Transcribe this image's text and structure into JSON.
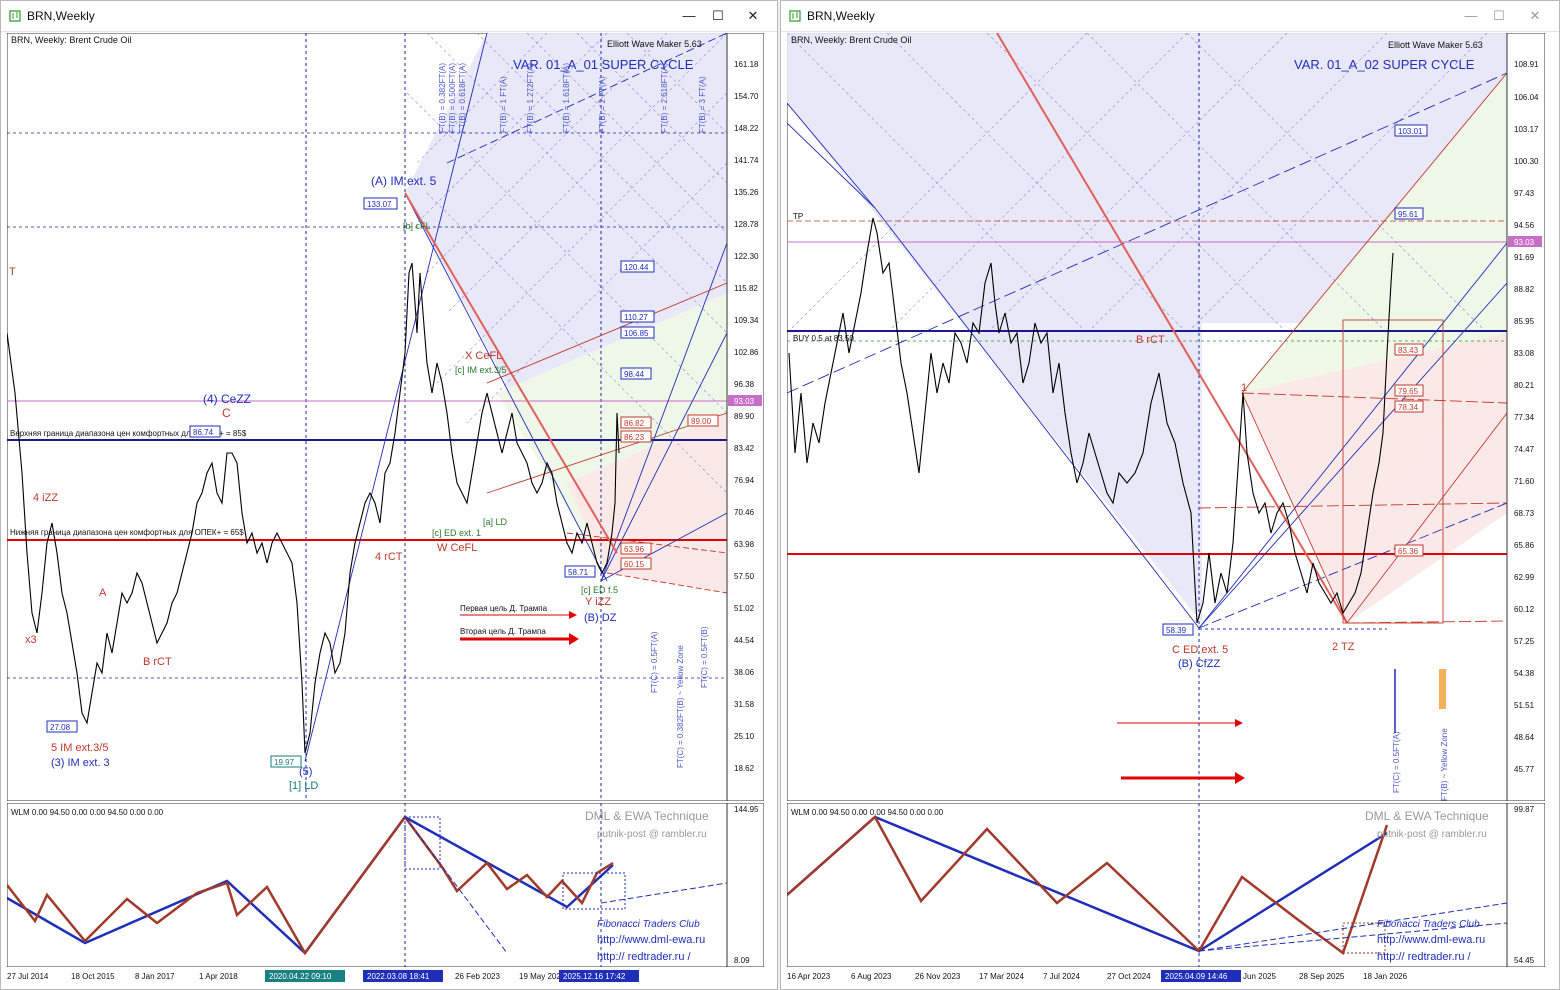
{
  "left_window": {
    "title": "BRN,Weekly",
    "chart_header": "BRN, Weekly:  Brent Crude Oil",
    "indicator_name": "Elliott Wave Maker 5.63",
    "scenario": "VAR. 01_A_01 SUPER CYCLE",
    "price_axis": [
      "161.18",
      "154.70",
      "148.22",
      "141.74",
      "135.26",
      "128.78",
      "122.30",
      "115.82",
      "109.34",
      "102.86",
      "96.38",
      "89.90",
      "83.42",
      "76.94",
      "70.46",
      "63.98",
      "57.50",
      "51.02",
      "44.54",
      "38.06",
      "31.58",
      "25.10",
      "18.62"
    ],
    "current_price": "93.03",
    "level_upper": "Верхняя граница диапазона цен комфортных для ОПЕК+ = 85$",
    "level_lower": "Нижняя граница диапазона цен комфортных для ОПЕК+ = 65$",
    "trump_target_1": "Первая цель Д. Трампа",
    "trump_target_2": "Вторая цель Д. Трампа",
    "price_boxes": [
      "133.07",
      "27.08",
      "19.97",
      "58.71",
      "120.44",
      "110.27",
      "106.85",
      "98.44",
      "86.82",
      "86.23",
      "89.00",
      "63.96",
      "60.15",
      "86.74"
    ],
    "wave_labels": {
      "a_im": "(A) IM ext. 5",
      "four_cezz": "(4) CeZZ",
      "c_red": "C",
      "x_cefl": "X CeFL",
      "c_im": "[c] IM ext.3/5",
      "b_cfl": "[b] cFL",
      "w_cefl": "W CeFL",
      "c_ed1": "[c] ED ext. 1",
      "a_ld": "[a] LD",
      "four_rct": "4 rCT",
      "four_izz": "4 iZZ",
      "x3": "x3",
      "five_im": "5 IM ext.3/5",
      "three_im": "(3) IM ext. 3",
      "b_rct": "B rCT",
      "a_red": "A",
      "five": "(5)",
      "one_ld": "[1] LD",
      "y_izz": "Y iZZ",
      "b_dz": "(B) DZ",
      "c_ed5": "[c] ED f.5",
      "t": "T"
    },
    "fib_vertical": [
      "FT(B) = 0.382FT(A)",
      "FT(B) = 0.500FT(A)",
      "FT(B) = 0.618FT(A)",
      "FT(B) = 1 FT(A)",
      "FT(B) = 1.272FT(A)",
      "FT(B) = 1.618FT(A)",
      "FT(B) = 2 FT(A)",
      "FT(B) = 2.618FT(A)",
      "FT(B) = 3 FT(A)"
    ],
    "fib_lower": [
      "FT(C) = 0.5FT(A)",
      "FT(C) = 0.382FT(B) ~ Yellow Zone",
      "FT(C) = 0.5FT(B)"
    ],
    "sub_header": "WLM 0.00 94.50 0.00 0.00 94.50 0.00 0.00",
    "sub_axis": [
      "144.95",
      "8.09"
    ],
    "watermark1": "DML & EWA Technique",
    "watermark2": "putnik-post @ rambler.ru",
    "watermark3": "Fibonacci      Traders      Club",
    "watermark4": "http://www.dml-ewa.ru",
    "watermark5": "http://  redtrader.ru  /",
    "x_axis": [
      "27 Jul 2014",
      "18 Oct 2015",
      "8 Jan 2017",
      "1 Apr 2018",
      "2020.04.22 09:10",
      "2022.03.08 18:41",
      "26 Feb 2023",
      "19 May 2024",
      "2025.12.16 17:42"
    ]
  },
  "right_window": {
    "title": "BRN,Weekly",
    "chart_header": "BRN, Weekly:  Brent Crude Oil",
    "indicator_name": "Elliott Wave Maker 5.63",
    "scenario": "VAR. 01_A_02 SUPER CYCLE",
    "price_axis": [
      "108.91",
      "106.04",
      "103.17",
      "100.30",
      "97.43",
      "94.56",
      "91.69",
      "88.82",
      "85.95",
      "83.08",
      "80.21",
      "77.34",
      "74.47",
      "71.60",
      "68.73",
      "65.86",
      "62.99",
      "60.12",
      "57.25",
      "54.38",
      "51.51",
      "48.64",
      "45.77"
    ],
    "current_price": "93.03",
    "tp_label": "TP",
    "buy_label": "BUY 0.5 at 83.50",
    "price_boxes": [
      "103.01",
      "95.61",
      "83.43",
      "79.65",
      "78.34",
      "65.36",
      "58.39"
    ],
    "wave_labels": {
      "b_rct": "B rCT",
      "c_ed5": "C ED ext. 5",
      "b_cfzz": "(B) CfZZ",
      "two_tz": "2 TZ",
      "one": "1"
    },
    "fib_lower": [
      "FT(C) = 0.5FT(A)",
      "FT(B) ~ Yellow Zone"
    ],
    "sub_header": "WLM 0.00 94.50 0.00 0.00 94.50 0.00 0.00",
    "sub_axis": [
      "99.87",
      "54.45"
    ],
    "watermark1": "DML & EWA Technique",
    "watermark2": "putnik-post @ rambler.ru",
    "watermark3": "Fibonacci      Traders      Club",
    "watermark4": "http://www.dml-ewa.ru",
    "watermark5": "http://  redtrader.ru  /",
    "x_axis": [
      "16 Apr 2023",
      "6 Aug 2023",
      "26 Nov 2023",
      "17 Mar 2024",
      "7 Jul 2024",
      "27 Oct 2024",
      "2025.04.09 14:46",
      "Jun 2025",
      "28 Sep 2025",
      "18 Jan 2026"
    ]
  },
  "colors": {
    "wave_blue": "#1f2fb8",
    "wave_red": "#c0392b",
    "comfort_line": "#1a1a8c",
    "lower_line": "#e00000",
    "current_bg": "#c86dc8"
  }
}
